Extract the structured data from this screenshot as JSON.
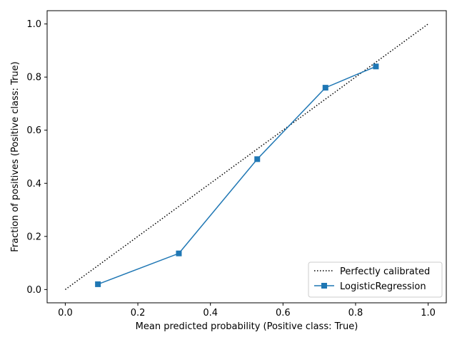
{
  "chart_data": {
    "type": "line",
    "xlabel": "Mean predicted probability (Positive class: True)",
    "ylabel": "Fraction of positives (Positive class: True)",
    "xlim": [
      -0.05,
      1.05
    ],
    "ylim": [
      -0.05,
      1.05
    ],
    "x_ticks": [
      "0.0",
      "0.2",
      "0.4",
      "0.6",
      "0.8",
      "1.0"
    ],
    "y_ticks": [
      "0.0",
      "0.2",
      "0.4",
      "0.6",
      "0.8",
      "1.0"
    ],
    "grid": false,
    "legend_position": "lower-right",
    "series": [
      {
        "name": "Perfectly calibrated",
        "style": "dotted",
        "color": "#000000",
        "x": [
          0.0,
          1.0
        ],
        "y": [
          0.0,
          1.0
        ]
      },
      {
        "name": "LogisticRegression",
        "style": "solid",
        "marker": "square",
        "color": "#1f77b4",
        "x": [
          0.09,
          0.313,
          0.529,
          0.717,
          0.856
        ],
        "y": [
          0.02,
          0.136,
          0.491,
          0.76,
          0.84
        ]
      }
    ]
  }
}
